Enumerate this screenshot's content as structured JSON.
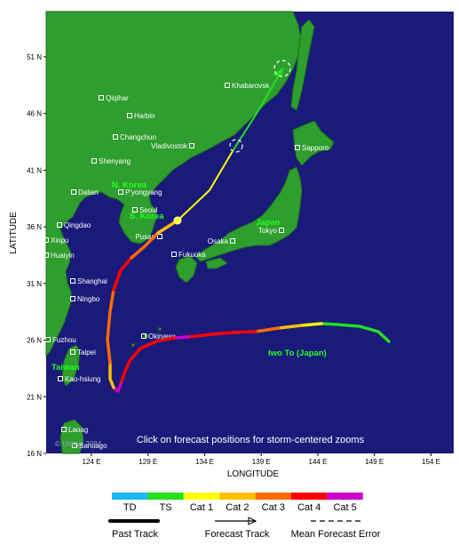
{
  "map": {
    "lat_ticks": [
      "51 N",
      "46 N",
      "41 N",
      "36 N",
      "31 N",
      "26 N",
      "21 N",
      "16 N"
    ],
    "lon_ticks": [
      "124 E",
      "129 E",
      "134 E",
      "139 E",
      "144 E",
      "149 E",
      "154 E"
    ],
    "ylabel": "LATITUDE",
    "xlabel": "LONGITUDE",
    "hint": "Click on forecast positions for storm-centered zooms",
    "credit": "© Unisys 2024",
    "colors": {
      "ocean": "#1a1a7a",
      "land": "#2e9e2e",
      "land_border": "#1d6d1d"
    },
    "cities": [
      {
        "name": "Khabarovsk"
      },
      {
        "name": "Qiqihar"
      },
      {
        "name": "Harbin"
      },
      {
        "name": "Changchun"
      },
      {
        "name": "Vladivostok"
      },
      {
        "name": "Shenyang"
      },
      {
        "name": "Sapporo"
      },
      {
        "name": "Dalian"
      },
      {
        "name": "P'yongyang"
      },
      {
        "name": "Seoul"
      },
      {
        "name": "Qingdao"
      },
      {
        "name": "Pusan"
      },
      {
        "name": "Tokyo"
      },
      {
        "name": "Xinpu"
      },
      {
        "name": "Osaka"
      },
      {
        "name": "Huaiyin"
      },
      {
        "name": "Fukuoka"
      },
      {
        "name": "Shanghai"
      },
      {
        "name": "Ningbo"
      },
      {
        "name": "Okinawa"
      },
      {
        "name": "Fuzhou"
      },
      {
        "name": "Taipei"
      },
      {
        "name": "Kao-hsiung"
      },
      {
        "name": "Laoag"
      },
      {
        "name": "Santiago"
      }
    ],
    "regions": {
      "north_korea": "N. Korea",
      "south_korea": "S. Korea",
      "japan": "Japan",
      "taiwan": "Taiwan",
      "iwo_to": "Iwo To (Japan)"
    }
  },
  "legend": {
    "categories": [
      {
        "label": "TD",
        "color": "#1ab8f0"
      },
      {
        "label": "TS",
        "color": "#22e022"
      },
      {
        "label": "Cat 1",
        "color": "#ffff00"
      },
      {
        "label": "Cat 2",
        "color": "#ffc000"
      },
      {
        "label": "Cat 3",
        "color": "#ff6a00"
      },
      {
        "label": "Cat 4",
        "color": "#ff0000"
      },
      {
        "label": "Cat 5",
        "color": "#cc00cc"
      }
    ],
    "past_track": "Past Track",
    "forecast_track": "Forecast Track",
    "mean_error": "Mean Forecast Error"
  }
}
